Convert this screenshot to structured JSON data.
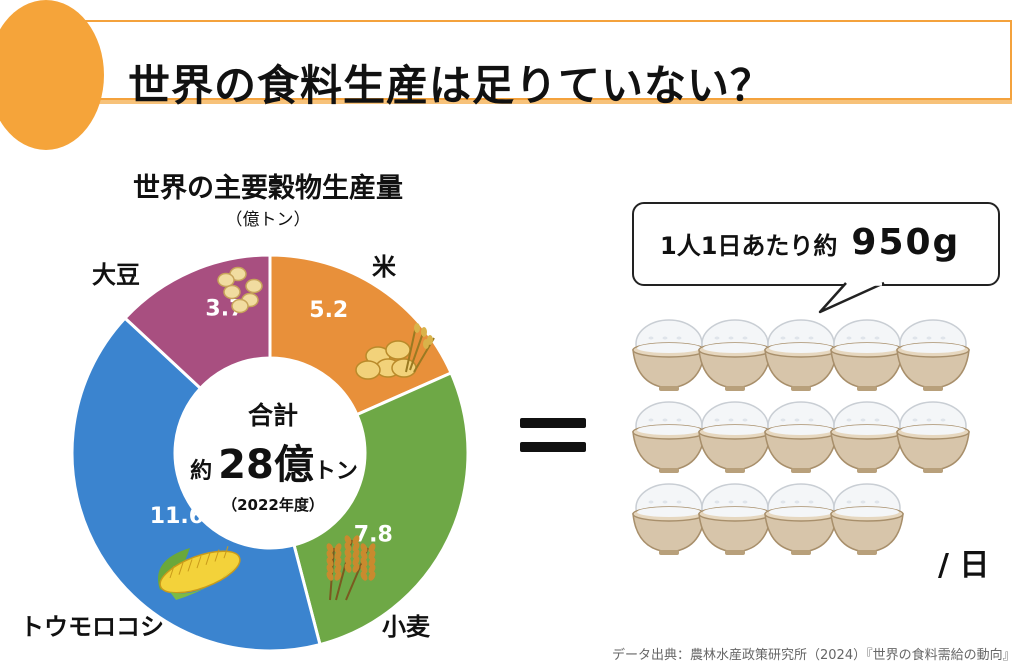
{
  "page": {
    "title": "世界の食料生産は足りていない？",
    "source": "データ出典：農林水産政策研究所（2024）『世界の食料需給の動向』",
    "equals_sign": "=",
    "bubble": {
      "prefix": "1人1日あたり約",
      "amount": "950g"
    },
    "per_day": "/ 日",
    "bowl_count": 14,
    "bowl_icon": "rice-bowl-icon"
  },
  "chart": {
    "title": "世界の主要穀物生産量",
    "unit": "（億トン）",
    "center": {
      "line1": "合計",
      "prefix": "約",
      "total": "28億",
      "suffix": "トン",
      "year": "（2022年度）"
    }
  },
  "chart_data": {
    "type": "pie",
    "title": "世界の主要穀物生産量",
    "unit": "（億トン）",
    "categories": [
      "米",
      "小麦",
      "トウモロコシ",
      "大豆"
    ],
    "values": [
      5.2,
      7.8,
      11.6,
      3.7
    ],
    "value_labels": [
      "5.2",
      "7.8",
      "11.6",
      "3.7"
    ],
    "colors": [
      "#e8903a",
      "#6ea846",
      "#3b84cf",
      "#a84f80"
    ],
    "icons": [
      "rice-sheaf-icon",
      "wheat-icon",
      "corn-icon",
      "soybean-icon"
    ],
    "donut": true
  }
}
